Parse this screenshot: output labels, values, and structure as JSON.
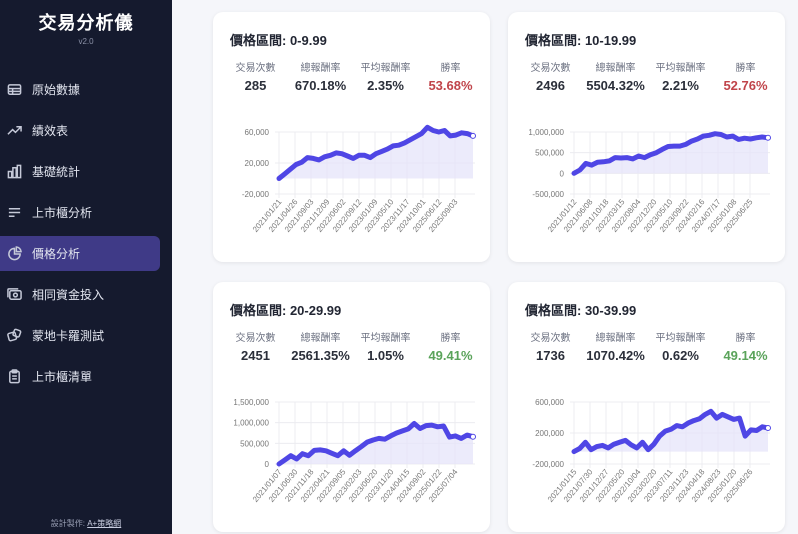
{
  "sidebar": {
    "title": "交易分析儀",
    "version": "v2.0",
    "items": [
      {
        "label": "原始數據",
        "icon": "table-icon",
        "active": false
      },
      {
        "label": "績效表",
        "icon": "trending-up-icon",
        "active": false
      },
      {
        "label": "基礎統計",
        "icon": "bar-chart-icon",
        "active": false
      },
      {
        "label": "上市櫃分析",
        "icon": "menu-lines-icon",
        "active": false
      },
      {
        "label": "價格分析",
        "icon": "pie-chart-icon",
        "active": true
      },
      {
        "label": "相同資金投入",
        "icon": "cash-icon",
        "active": false
      },
      {
        "label": "蒙地卡羅測試",
        "icon": "dice-icon",
        "active": false
      },
      {
        "label": "上市櫃清單",
        "icon": "clipboard-icon",
        "active": false
      }
    ],
    "footer_prefix": "設計製作: ",
    "footer_link": "A+策略網"
  },
  "stat_labels": {
    "trades": "交易次數",
    "total_return": "總報酬率",
    "avg_return": "平均報酬率",
    "win_rate": "勝率"
  },
  "colors": {
    "accent": "#4f46e5",
    "fill": "#e6e4fa",
    "win_low": "#c0444a",
    "win_high": "#5aa35a",
    "sidebar_bg": "#151a2e",
    "active_bg": "#3f3a87"
  },
  "cards": [
    {
      "title": "價格區間: 0-9.99",
      "trades": "285",
      "total_return": "670.18%",
      "avg_return": "2.35%",
      "win_rate": "53.68%",
      "win_color": "red"
    },
    {
      "title": "價格區間: 10-19.99",
      "trades": "2496",
      "total_return": "5504.32%",
      "avg_return": "2.21%",
      "win_rate": "52.76%",
      "win_color": "red"
    },
    {
      "title": "價格區間: 20-29.99",
      "trades": "2451",
      "total_return": "2561.35%",
      "avg_return": "1.05%",
      "win_rate": "49.41%",
      "win_color": "green"
    },
    {
      "title": "價格區間: 30-39.99",
      "trades": "1736",
      "total_return": "1070.42%",
      "avg_return": "0.62%",
      "win_rate": "49.14%",
      "win_color": "green"
    }
  ],
  "chart_data": [
    {
      "type": "area",
      "title": "價格區間: 0-9.99",
      "yticks": [
        "60,000",
        "20,000",
        "-20,000"
      ],
      "ylim": [
        -20000,
        60000
      ],
      "x_labels": [
        "2021/01/21",
        "2021/04/26",
        "2021/09/03",
        "2021/12/09",
        "2022/06/02",
        "2022/09/12",
        "2023/01/09",
        "2023/05/10",
        "2023/11/17",
        "2024/10/01",
        "2025/06/12",
        "2025/09/03"
      ],
      "values": [
        0,
        6000,
        12000,
        18000,
        21000,
        27000,
        26000,
        24000,
        28000,
        30000,
        33000,
        32000,
        29000,
        26000,
        30000,
        30000,
        27000,
        32000,
        35000,
        38000,
        42000,
        43000,
        46000,
        50000,
        54000,
        58000,
        66000,
        62000,
        60000,
        62000,
        55000,
        56000,
        59000,
        58000,
        55000
      ]
    },
    {
      "type": "area",
      "title": "價格區間: 10-19.99",
      "yticks": [
        "1,000,000",
        "500,000",
        "0",
        "-500,000"
      ],
      "ylim": [
        -500000,
        1000000
      ],
      "x_labels": [
        "2021/01/12",
        "2021/06/08",
        "2021/10/18",
        "2022/03/15",
        "2022/08/04",
        "2022/12/20",
        "2023/05/10",
        "2023/09/22",
        "2024/02/16",
        "2024/07/17",
        "2025/01/08",
        "2025/06/25"
      ],
      "values": [
        0,
        80000,
        240000,
        200000,
        270000,
        280000,
        300000,
        380000,
        370000,
        380000,
        350000,
        420000,
        380000,
        450000,
        500000,
        580000,
        650000,
        660000,
        660000,
        700000,
        780000,
        830000,
        900000,
        920000,
        960000,
        940000,
        880000,
        900000,
        820000,
        850000,
        830000,
        860000,
        880000,
        860000
      ]
    },
    {
      "type": "area",
      "title": "價格區間: 20-29.99",
      "yticks": [
        "1,500,000",
        "1,000,000",
        "500,000",
        "0"
      ],
      "ylim": [
        0,
        1500000
      ],
      "x_labels": [
        "2021/01/07",
        "2021/06/30",
        "2021/11/18",
        "2022/04/21",
        "2022/09/05",
        "2023/02/03",
        "2023/06/20",
        "2023/11/20",
        "2024/04/15",
        "2024/09/02",
        "2025/01/22",
        "2025/07/04"
      ],
      "values": [
        0,
        100000,
        200000,
        120000,
        250000,
        200000,
        330000,
        340000,
        320000,
        260000,
        200000,
        320000,
        210000,
        320000,
        420000,
        530000,
        580000,
        620000,
        600000,
        680000,
        750000,
        800000,
        850000,
        980000,
        860000,
        930000,
        940000,
        900000,
        920000,
        650000,
        680000,
        620000,
        700000,
        660000
      ]
    },
    {
      "type": "area",
      "title": "價格區間: 30-39.99",
      "yticks": [
        "600,000",
        "200,000",
        "-200,000"
      ],
      "ylim": [
        -200000,
        800000
      ],
      "x_labels": [
        "2021/01/15",
        "2021/07/30",
        "2021/12/27",
        "2022/05/20",
        "2022/10/04",
        "2023/02/20",
        "2023/07/11",
        "2023/11/23",
        "2024/04/18",
        "2024/08/23",
        "2025/01/20",
        "2025/06/26"
      ],
      "values": [
        0,
        50000,
        150000,
        30000,
        80000,
        100000,
        60000,
        120000,
        150000,
        180000,
        110000,
        60000,
        150000,
        30000,
        120000,
        250000,
        330000,
        360000,
        420000,
        400000,
        460000,
        500000,
        530000,
        600000,
        650000,
        540000,
        600000,
        560000,
        520000,
        540000,
        250000,
        350000,
        340000,
        400000,
        380000
      ]
    }
  ]
}
